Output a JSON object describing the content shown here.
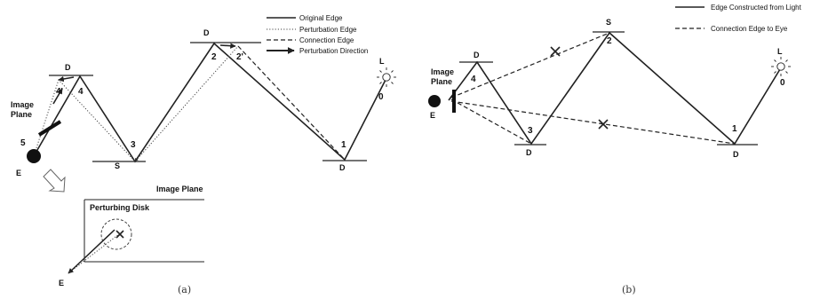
{
  "panel_a": {
    "caption": "(a)",
    "legend": {
      "original_edge": "Original Edge",
      "perturbation_edge": "Perturbation Edge",
      "connection_edge": "Connection Edge",
      "perturbation_direction": "Perturbation Direction"
    },
    "labels": {
      "image_plane": [
        "Image",
        "Plane"
      ],
      "eye": "E",
      "light": "L",
      "diffuse": "D",
      "specular": "S"
    },
    "vertex_numbers": [
      "5",
      "4",
      "4'",
      "3",
      "2",
      "2'",
      "1",
      "0"
    ],
    "inset": {
      "title": "Image Plane",
      "disk_label": "Perturbing Disk",
      "eye": "E"
    }
  },
  "panel_b": {
    "caption": "(b)",
    "legend": {
      "light_edge": "Edge Constructed from Light",
      "eye_edge": "Connection Edge to Eye"
    },
    "labels": {
      "image_plane": [
        "Image",
        "Plane"
      ],
      "eye": "E",
      "light": "L",
      "diffuse": "D",
      "specular": "S"
    },
    "vertex_numbers": [
      "4",
      "3",
      "2",
      "1",
      "0"
    ]
  }
}
